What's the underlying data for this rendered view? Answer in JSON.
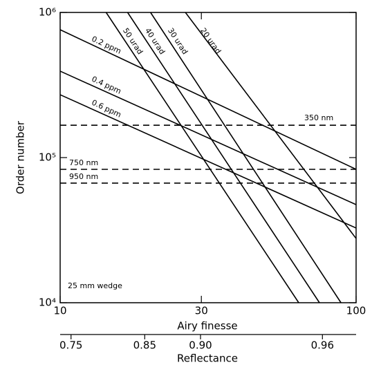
{
  "chart_data": {
    "type": "line",
    "x_label": "Airy finesse",
    "y_label": "Order number",
    "xscale": "log",
    "yscale": "log",
    "xlim": [
      10,
      100
    ],
    "ylim": [
      10000,
      1000000
    ],
    "xticks": [
      10,
      30,
      100
    ],
    "yticks": [
      {
        "value": 10000,
        "label": "10⁴"
      },
      {
        "value": 100000,
        "label": "10⁵"
      },
      {
        "value": 1000000,
        "label": "10⁶"
      }
    ],
    "x2_label": "Reflectance",
    "x2ticks": [
      {
        "value": 0.75,
        "label": "0.75"
      },
      {
        "value": 0.85,
        "label": "0.85"
      },
      {
        "value": 0.9,
        "label": "0.90"
      },
      {
        "value": 0.96,
        "label": "0.96"
      }
    ],
    "annotation": "25 mm wedge",
    "series": [
      {
        "name": "0.2 ppm",
        "color": "#000000",
        "x": [
          10,
          100
        ],
        "values": [
          760000,
          83000
        ]
      },
      {
        "name": "0.4 ppm",
        "color": "#000000",
        "x": [
          10,
          100
        ],
        "values": [
          394000,
          47400
        ]
      },
      {
        "name": "0.6 ppm",
        "color": "#000000",
        "x": [
          10,
          100
        ],
        "values": [
          271000,
          32700
        ]
      },
      {
        "name": "50 urad",
        "color": "#000000",
        "x": [
          14.3,
          64
        ],
        "values": [
          1000000,
          10000
        ]
      },
      {
        "name": "40 urad",
        "color": "#000000",
        "x": [
          16.9,
          75.2
        ],
        "values": [
          1000000,
          10000
        ]
      },
      {
        "name": "30 urad",
        "color": "#000000",
        "x": [
          20.2,
          88.9
        ],
        "values": [
          1000000,
          10000
        ]
      },
      {
        "name": "20 urad",
        "color": "#000000",
        "x": [
          26.5,
          100
        ],
        "values": [
          1000000,
          27700
        ]
      },
      {
        "name": "350 nm",
        "color": "#000000",
        "dashed": true,
        "x": [
          10,
          100
        ],
        "values": [
          167000,
          167000
        ]
      },
      {
        "name": "750 nm",
        "color": "#000000",
        "dashed": true,
        "x": [
          10,
          100
        ],
        "values": [
          83000,
          83000
        ]
      },
      {
        "name": "950 nm",
        "color": "#000000",
        "dashed": true,
        "x": [
          10,
          100
        ],
        "values": [
          66700,
          66700
        ]
      }
    ]
  }
}
